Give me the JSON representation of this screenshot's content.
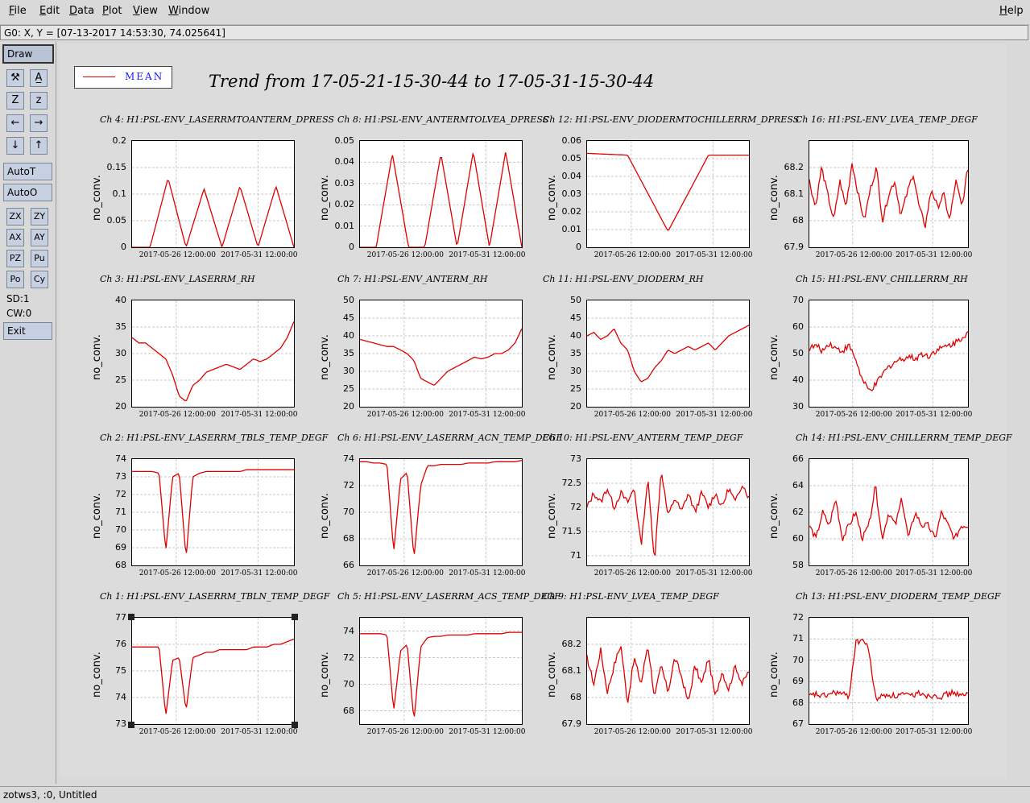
{
  "menu": {
    "items": [
      "File",
      "Edit",
      "Data",
      "Plot",
      "View",
      "Window"
    ],
    "help": "Help"
  },
  "cursor_readout": "G0: X, Y = [07-13-2017 14:53:30, 74.025641]",
  "toolbar": {
    "draw": "Draw",
    "icon_buttons": [
      {
        "name": "wrench-icon",
        "glyph": "⚒"
      },
      {
        "name": "text-icon",
        "glyph": "A̲"
      },
      {
        "name": "zoom-in-icon",
        "glyph": "Z"
      },
      {
        "name": "zoom-out-icon",
        "glyph": "z"
      },
      {
        "name": "arrow-left-icon",
        "glyph": "←"
      },
      {
        "name": "arrow-right-icon",
        "glyph": "→"
      },
      {
        "name": "arrow-down-icon",
        "glyph": "↓"
      },
      {
        "name": "arrow-up-icon",
        "glyph": "↑"
      }
    ],
    "autot": "AutoT",
    "autoo": "AutoO",
    "small_buttons": [
      "ZX",
      "ZY",
      "AX",
      "AY",
      "PZ",
      "Pu",
      "Po",
      "Cy"
    ],
    "sd": "SD:1",
    "cw": "CW:0",
    "exit": "Exit"
  },
  "legend": {
    "label": "MEAN",
    "color": "#e00000"
  },
  "main_title": "Trend from 17-05-21-15-30-44 to 17-05-31-15-30-44",
  "status_bar": "zotws3, :0, Untitled",
  "chart_data": [
    {
      "type": "line",
      "title": "Ch 4: H1:PSL-ENV_LASERRMTOANTERM_DPRESS",
      "ylabel": "no_conv.",
      "ylim": [
        0,
        0.2
      ],
      "yticks": [
        "0.2",
        "0.15",
        "0.1",
        "0.05",
        "0"
      ],
      "xticks": [
        "2017-05-26 12:00:00",
        "2017-05-31 12:00:00"
      ],
      "series": [
        {
          "name": "MEAN",
          "color": "#e00000",
          "x": [
            "2017-05-21",
            "2017-05-25",
            "2017-05-25.1",
            "2017-05-25.2",
            "2017-05-25.8",
            "2017-05-25.9",
            "2017-05-26.0",
            "2017-05-26.1",
            "2017-05-26.2",
            "2017-05-31"
          ],
          "values": [
            0,
            0,
            0.13,
            0,
            0.11,
            0,
            0.115,
            0,
            0.115,
            0
          ]
        }
      ]
    },
    {
      "type": "line",
      "title": "Ch 8: H1:PSL-ENV_ANTERMTOLVEA_DPRESS",
      "ylabel": "no_conv.",
      "ylim": [
        0,
        0.05
      ],
      "yticks": [
        "0.05",
        "0.04",
        "0.03",
        "0.02",
        "0.01",
        "0"
      ],
      "xticks": [
        "2017-05-26 12:00:00",
        "2017-05-31 12:00:00"
      ],
      "series": [
        {
          "name": "MEAN",
          "color": "#e00000",
          "x": [
            "2017-05-21",
            "2017-05-24.8",
            "2017-05-24.9",
            "2017-05-25",
            "2017-05-25.7",
            "2017-05-25.8",
            "2017-05-25.9",
            "2017-05-26",
            "2017-05-26.1",
            "2017-05-26.2",
            "2017-05-31"
          ],
          "values": [
            0,
            0,
            0.044,
            0,
            0,
            0.044,
            0,
            0.045,
            0,
            0.045,
            0
          ]
        }
      ]
    },
    {
      "type": "line",
      "title": "Ch 12: H1:PSL-ENV_DIODERMTOCHILLERRM_DPRESS",
      "ylabel": "no_conv.",
      "ylim": [
        0,
        0.06
      ],
      "yticks": [
        "0.06",
        "0.05",
        "0.04",
        "0.03",
        "0.02",
        "0.01",
        "0"
      ],
      "xticks": [
        "2017-05-26 12:00:00",
        "2017-05-31 12:00:00"
      ],
      "series": [
        {
          "name": "MEAN",
          "color": "#e00000",
          "x": [
            "2017-05-21",
            "2017-05-25",
            "2017-05-25.1",
            "2017-05-25.2",
            "2017-05-31"
          ],
          "values": [
            0.053,
            0.052,
            0.009,
            0.052,
            0.052
          ]
        }
      ]
    },
    {
      "type": "line",
      "title": "Ch 16: H1:PSL-ENV_LVEA_TEMP_DEGF",
      "ylabel": "no_conv.",
      "ylim": [
        67.9,
        68.3
      ],
      "yticks": [
        "68.2",
        "68.1",
        "68",
        "67.9"
      ],
      "xticks": [
        "2017-05-26 12:00:00",
        "2017-05-31 12:00:00"
      ],
      "series": [
        {
          "name": "MEAN",
          "color": "#e00000",
          "values": [
            68.15,
            68.05,
            68.2,
            68.1,
            68.0,
            68.15,
            68.05,
            68.22,
            68.1,
            68.0,
            68.12,
            68.2,
            68.0,
            68.1,
            68.15,
            68.02,
            68.1,
            68.18,
            68.05,
            67.98,
            68.12,
            68.05,
            68.1,
            68.0,
            68.15,
            68.05,
            68.2
          ]
        }
      ]
    },
    {
      "type": "line",
      "title": "Ch 3: H1:PSL-ENV_LASERRM_RH",
      "ylabel": "no_conv.",
      "ylim": [
        20,
        40
      ],
      "yticks": [
        "40",
        "35",
        "30",
        "25",
        "20"
      ],
      "xticks": [
        "2017-05-26 12:00:00",
        "2017-05-31 12:00:00"
      ],
      "series": [
        {
          "name": "MEAN",
          "color": "#e00000",
          "values": [
            33,
            32,
            32,
            31,
            30,
            29,
            26,
            22,
            21,
            24,
            25,
            26.5,
            27,
            27.5,
            28,
            27.5,
            27,
            28,
            29,
            28.5,
            29,
            30,
            31,
            33,
            36
          ]
        }
      ]
    },
    {
      "type": "line",
      "title": "Ch 7: H1:PSL-ENV_ANTERM_RH",
      "ylabel": "no_conv.",
      "ylim": [
        20,
        50
      ],
      "yticks": [
        "50",
        "45",
        "40",
        "35",
        "30",
        "25",
        "20"
      ],
      "xticks": [
        "2017-05-26 12:00:00",
        "2017-05-31 12:00:00"
      ],
      "series": [
        {
          "name": "MEAN",
          "color": "#e00000",
          "values": [
            39,
            38.5,
            38,
            37.5,
            37,
            37,
            36,
            35,
            33,
            28,
            27,
            26,
            28,
            30,
            31,
            32,
            33,
            34,
            33.5,
            34,
            35,
            35,
            36,
            38,
            42
          ]
        }
      ]
    },
    {
      "type": "line",
      "title": "Ch 11: H1:PSL-ENV_DIODERM_RH",
      "ylabel": "no_conv.",
      "ylim": [
        20,
        50
      ],
      "yticks": [
        "50",
        "45",
        "40",
        "35",
        "30",
        "25",
        "20"
      ],
      "xticks": [
        "2017-05-26 12:00:00",
        "2017-05-31 12:00:00"
      ],
      "series": [
        {
          "name": "MEAN",
          "color": "#e00000",
          "values": [
            40,
            41,
            39,
            40,
            42,
            38,
            36,
            30,
            27,
            28,
            31,
            33,
            36,
            35,
            36,
            37,
            36,
            37,
            38,
            36,
            38,
            40,
            41,
            42,
            43
          ]
        }
      ]
    },
    {
      "type": "line",
      "title": "Ch 15: H1:PSL-ENV_CHILLERRM_RH",
      "ylabel": "no_conv.",
      "ylim": [
        30,
        70
      ],
      "yticks": [
        "70",
        "60",
        "50",
        "40",
        "30"
      ],
      "xticks": [
        "2017-05-26 12:00:00",
        "2017-05-31 12:00:00"
      ],
      "series": [
        {
          "name": "MEAN",
          "color": "#e00000",
          "values": [
            52,
            53,
            51,
            54,
            52,
            51,
            53,
            48,
            40,
            36,
            38,
            42,
            45,
            47,
            48,
            49,
            48,
            50,
            49,
            51,
            52,
            53,
            54,
            56,
            58
          ]
        }
      ]
    },
    {
      "type": "line",
      "title": "Ch 2: H1:PSL-ENV_LASERRM_TBLS_TEMP_DEGF",
      "ylabel": "no_conv.",
      "ylim": [
        68,
        74
      ],
      "yticks": [
        "74",
        "73",
        "72",
        "71",
        "70",
        "69",
        "68"
      ],
      "xticks": [
        "2017-05-26 12:00:00",
        "2017-05-31 12:00:00"
      ],
      "series": [
        {
          "name": "MEAN",
          "color": "#e00000",
          "values": [
            73.3,
            73.3,
            73.3,
            73.3,
            73.2,
            68.8,
            73.0,
            73.2,
            68.4,
            73.0,
            73.2,
            73.3,
            73.3,
            73.3,
            73.3,
            73.3,
            73.3,
            73.4,
            73.4,
            73.4,
            73.4,
            73.4,
            73.4,
            73.4,
            73.4
          ]
        }
      ]
    },
    {
      "type": "line",
      "title": "Ch 6: H1:PSL-ENV_LASERRM_ACN_TEMP_DEGF",
      "ylabel": "no_conv.",
      "ylim": [
        66,
        74
      ],
      "yticks": [
        "74",
        "72",
        "70",
        "68",
        "66"
      ],
      "xticks": [
        "2017-05-26 12:00:00",
        "2017-05-31 12:00:00"
      ],
      "series": [
        {
          "name": "MEAN",
          "color": "#e00000",
          "values": [
            73.8,
            73.8,
            73.7,
            73.7,
            73.6,
            67,
            72.5,
            73,
            66.5,
            72,
            73.5,
            73.5,
            73.6,
            73.6,
            73.6,
            73.6,
            73.7,
            73.7,
            73.7,
            73.7,
            73.8,
            73.8,
            73.8,
            73.8,
            73.9
          ]
        }
      ]
    },
    {
      "type": "line",
      "title": "Ch 10: H1:PSL-ENV_ANTERM_TEMP_DEGF",
      "ylabel": "no_conv.",
      "ylim": [
        70.8,
        73
      ],
      "yticks": [
        "73",
        "72.5",
        "72",
        "71.5",
        "71"
      ],
      "xticks": [
        "2017-05-26 12:00:00",
        "2017-05-31 12:00:00"
      ],
      "series": [
        {
          "name": "MEAN",
          "color": "#e00000",
          "values": [
            72.0,
            72.3,
            72.1,
            72.4,
            72.0,
            72.3,
            72.1,
            72.4,
            71.2,
            72.6,
            70.9,
            72.8,
            71.8,
            72.2,
            71.9,
            72.3,
            71.9,
            72.3,
            72.0,
            72.3,
            72.0,
            72.4,
            72.1,
            72.5,
            72.2
          ]
        }
      ]
    },
    {
      "type": "line",
      "title": "Ch 14: H1:PSL-ENV_CHILLERRM_TEMP_DEGF",
      "ylabel": "no_conv.",
      "ylim": [
        58,
        66
      ],
      "yticks": [
        "66",
        "64",
        "62",
        "60",
        "58"
      ],
      "xticks": [
        "2017-05-26 12:00:00",
        "2017-05-31 12:00:00"
      ],
      "series": [
        {
          "name": "MEAN",
          "color": "#e00000",
          "values": [
            61,
            60,
            62,
            61,
            63,
            60,
            61,
            62,
            60,
            61,
            64,
            60,
            62,
            61,
            63,
            60,
            62,
            61,
            61,
            60,
            62,
            61,
            60,
            61,
            61
          ]
        }
      ]
    },
    {
      "type": "line",
      "title": "Ch 1: H1:PSL-ENV_LASERRM_TBLN_TEMP_DEGF",
      "ylabel": "no_conv.",
      "ylim": [
        73,
        77
      ],
      "yticks": [
        "77",
        "76",
        "75",
        "74",
        "73"
      ],
      "xticks": [
        "2017-05-26 12:00:00",
        "2017-05-31 12:00:00"
      ],
      "series": [
        {
          "name": "MEAN",
          "color": "#e00000",
          "values": [
            75.9,
            75.9,
            75.9,
            75.9,
            75.9,
            73.3,
            75.4,
            75.5,
            73.5,
            75.5,
            75.6,
            75.7,
            75.7,
            75.8,
            75.8,
            75.8,
            75.8,
            75.8,
            75.9,
            75.9,
            75.9,
            76.0,
            76.0,
            76.1,
            76.2
          ]
        }
      ]
    },
    {
      "type": "line",
      "title": "Ch 5: H1:PSL-ENV_LASERRM_ACS_TEMP_DEGF",
      "ylabel": "no_conv.",
      "ylim": [
        67,
        75
      ],
      "yticks": [
        "74",
        "72",
        "70",
        "68"
      ],
      "xticks": [
        "2017-05-26 12:00:00",
        "2017-05-31 12:00:00"
      ],
      "series": [
        {
          "name": "MEAN",
          "color": "#e00000",
          "values": [
            73.8,
            73.8,
            73.8,
            73.8,
            73.7,
            68,
            72.5,
            73,
            67.2,
            72.8,
            73.5,
            73.6,
            73.6,
            73.7,
            73.7,
            73.7,
            73.7,
            73.8,
            73.8,
            73.8,
            73.8,
            73.8,
            73.9,
            73.9,
            73.9
          ]
        }
      ]
    },
    {
      "type": "line",
      "title": "Ch 9: H1:PSL-ENV_LVEA_TEMP_DEGF",
      "ylabel": "no_conv.",
      "ylim": [
        67.9,
        68.3
      ],
      "yticks": [
        "68.2",
        "68.1",
        "68",
        "67.9"
      ],
      "xticks": [
        "2017-05-26 12:00:00",
        "2017-05-31 12:00:00"
      ],
      "series": [
        {
          "name": "MEAN",
          "color": "#e00000",
          "values": [
            68.15,
            68.05,
            68.18,
            68.02,
            68.12,
            68.2,
            67.98,
            68.15,
            68.05,
            68.2,
            68.0,
            68.12,
            68.02,
            68.15,
            68.08,
            67.98,
            68.12,
            68.05,
            68.15,
            68.0,
            68.1,
            68.03,
            68.12,
            68.05,
            68.1
          ]
        }
      ]
    },
    {
      "type": "line",
      "title": "Ch 13: H1:PSL-ENV_DIODERM_TEMP_DEGF",
      "ylabel": "no_conv.",
      "ylim": [
        67,
        72
      ],
      "yticks": [
        "72",
        "71",
        "70",
        "69",
        "68",
        "67"
      ],
      "xticks": [
        "2017-05-26 12:00:00",
        "2017-05-31 12:00:00"
      ],
      "series": [
        {
          "name": "MEAN",
          "color": "#e00000",
          "values": [
            68.3,
            68.4,
            68.3,
            68.4,
            68.5,
            68.4,
            68.3,
            70.8,
            71.0,
            70.5,
            68.2,
            68.3,
            68.4,
            68.3,
            68.4,
            68.3,
            68.4,
            68.5,
            68.3,
            68.4,
            68.3,
            68.4,
            68.5,
            68.3,
            68.4
          ]
        }
      ]
    }
  ]
}
